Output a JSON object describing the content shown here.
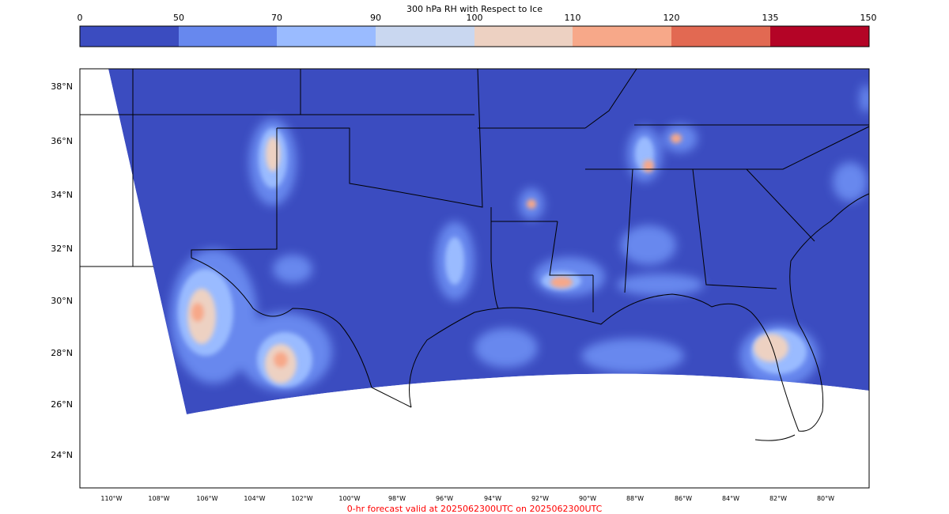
{
  "colorbar": {
    "title": "300 hPa RH with Respect to Ice",
    "ticks": [
      "0",
      "50",
      "70",
      "90",
      "100",
      "110",
      "120",
      "135",
      "150"
    ],
    "colors": [
      "#3b4cc0",
      "#6788ee",
      "#9abbff",
      "#c9d7f0",
      "#edd1c2",
      "#f7a889",
      "#e26952",
      "#b40426"
    ]
  },
  "map": {
    "lat_labels": [
      "38°N",
      "36°N",
      "34°N",
      "32°N",
      "30°N",
      "28°N",
      "26°N",
      "24°N"
    ],
    "lon_labels": [
      "110°W",
      "108°W",
      "106°W",
      "104°W",
      "102°W",
      "100°W",
      "98°W",
      "96°W",
      "94°W",
      "92°W",
      "90°W",
      "88°W",
      "86°W",
      "84°W",
      "82°W",
      "80°W"
    ],
    "background_color": "#3b4cc0"
  },
  "footer": {
    "text": "0-hr forecast valid at 2025062300UTC on 2025062300UTC",
    "color": "#ff0000"
  }
}
